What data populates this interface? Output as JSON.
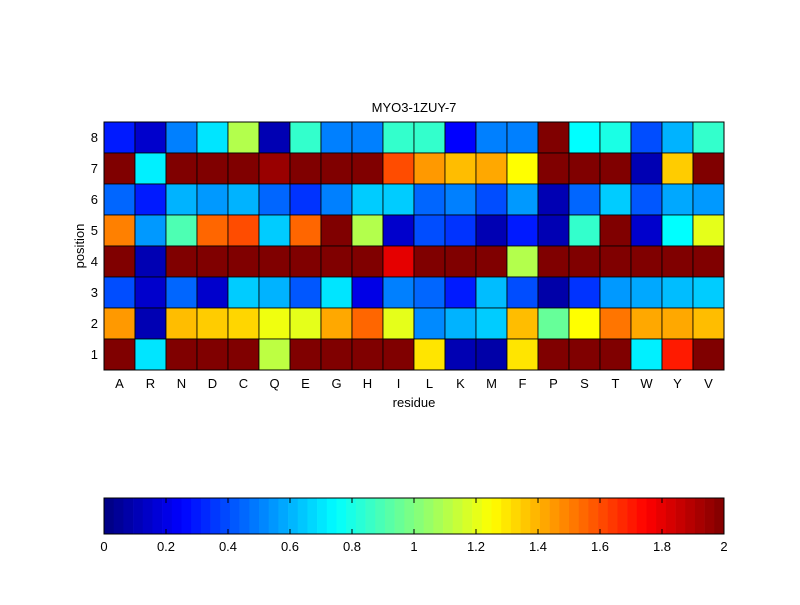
{
  "chart_data": [
    {
      "type": "heatmap",
      "title": "MYO3-1ZUY-7",
      "xlabel": "residue",
      "ylabel": "position",
      "x_categories": [
        "A",
        "R",
        "N",
        "D",
        "C",
        "Q",
        "E",
        "G",
        "H",
        "I",
        "L",
        "K",
        "M",
        "F",
        "P",
        "S",
        "T",
        "W",
        "Y",
        "V"
      ],
      "y_categories": [
        "8",
        "7",
        "6",
        "5",
        "4",
        "3",
        "2",
        "1"
      ],
      "clim": [
        0,
        2
      ],
      "colormap": "jet",
      "values": [
        [
          0.3,
          0.15,
          0.5,
          0.7,
          1.1,
          0.1,
          0.85,
          0.5,
          0.5,
          0.85,
          0.85,
          0.25,
          0.5,
          0.5,
          2.0,
          0.75,
          0.8,
          0.4,
          0.6,
          0.85
        ],
        [
          2.0,
          0.72,
          2.0,
          2.0,
          2.0,
          1.95,
          2.0,
          2.0,
          2.0,
          1.6,
          1.45,
          1.38,
          1.42,
          1.25,
          2.0,
          2.0,
          2.0,
          0.1,
          1.35,
          2.0
        ],
        [
          0.45,
          0.3,
          0.6,
          0.55,
          0.6,
          0.45,
          0.35,
          0.5,
          0.65,
          0.65,
          0.45,
          0.5,
          0.4,
          0.55,
          0.1,
          0.45,
          0.65,
          0.42,
          0.58,
          0.55
        ],
        [
          1.5,
          0.55,
          0.9,
          1.55,
          1.6,
          0.65,
          1.55,
          2.0,
          1.1,
          0.15,
          0.4,
          0.35,
          0.1,
          0.3,
          0.1,
          0.85,
          2.0,
          0.15,
          0.75,
          1.2
        ],
        [
          2.0,
          0.1,
          2.0,
          2.0,
          2.0,
          2.0,
          2.0,
          2.0,
          2.0,
          1.8,
          2.0,
          2.0,
          2.0,
          1.1,
          2.0,
          2.0,
          2.0,
          2.0,
          2.0,
          2.0
        ],
        [
          0.4,
          0.15,
          0.45,
          0.15,
          0.65,
          0.6,
          0.42,
          0.7,
          0.2,
          0.5,
          0.45,
          0.3,
          0.62,
          0.4,
          0.08,
          0.35,
          0.55,
          0.58,
          0.62,
          0.65
        ],
        [
          1.45,
          0.1,
          1.38,
          1.35,
          1.33,
          1.22,
          1.2,
          1.42,
          1.55,
          1.2,
          0.52,
          0.6,
          0.65,
          1.38,
          0.95,
          1.25,
          1.52,
          1.42,
          1.42,
          1.38
        ],
        [
          2.0,
          0.7,
          2.0,
          2.0,
          2.0,
          1.12,
          2.0,
          2.0,
          2.0,
          2.0,
          1.3,
          0.1,
          0.08,
          1.3,
          2.0,
          2.0,
          2.0,
          0.72,
          1.7,
          2.0
        ]
      ]
    },
    {
      "type": "colorbar",
      "ticks": [
        "0",
        "0.2",
        "0.4",
        "0.6",
        "0.8",
        "1",
        "1.2",
        "1.4",
        "1.6",
        "1.8",
        "2"
      ],
      "range": [
        0,
        2
      ],
      "levels": 64
    }
  ]
}
